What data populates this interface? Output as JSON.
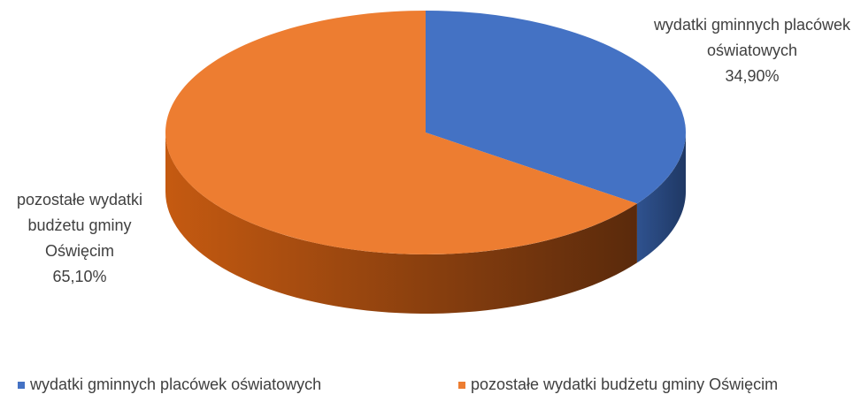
{
  "chart_data": {
    "type": "pie",
    "categories": [
      "wydatki gminnych placówek oświatowych",
      "pozostałe wydatki budżetu gminy Oświęcim"
    ],
    "values": [
      34.9,
      65.1
    ],
    "value_labels": [
      "34,90%",
      "65,10%"
    ],
    "colors": [
      "#4472c4",
      "#ed7d31"
    ],
    "legend": "bottom"
  }
}
